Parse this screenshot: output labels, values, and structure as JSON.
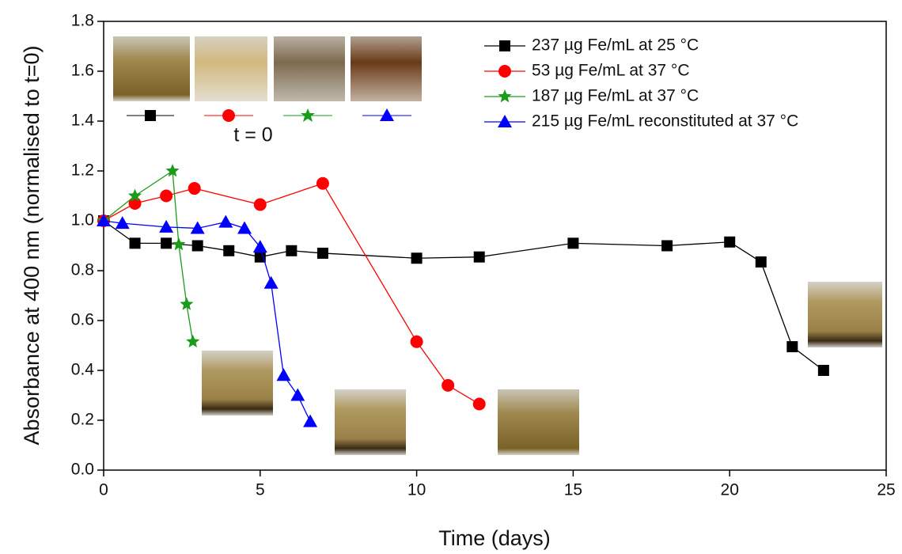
{
  "chart_data": {
    "type": "line",
    "x_label": "Time (days)",
    "y_label": "Absorbance at 400 nm (normalised to t=0)",
    "annotation": "t = 0",
    "xlim": [
      0,
      25
    ],
    "xticks": [
      0,
      5,
      10,
      15,
      20,
      25
    ],
    "ylim": [
      0,
      1.8
    ],
    "yticks": [
      {
        "value": 0,
        "label": "0.0"
      },
      0.2,
      0.4,
      0.6,
      0.8,
      {
        "value": 1,
        "label": "1.0"
      },
      1.2,
      1.4,
      1.6,
      1.8
    ],
    "legend": "upper right",
    "series": [
      {
        "name": "237 µg Fe/mL at 25 °C",
        "color": "#000000",
        "marker": "square",
        "x": [
          0,
          1,
          2,
          3,
          4,
          5,
          6,
          7,
          10,
          12,
          15,
          18,
          20,
          21,
          22,
          23
        ],
        "values": [
          1.0,
          0.91,
          0.91,
          0.9,
          0.88,
          0.855,
          0.88,
          0.87,
          0.85,
          0.855,
          0.91,
          0.9,
          0.915,
          0.835,
          0.495,
          0.4
        ]
      },
      {
        "name": "53 µg Fe/mL at 37 °C",
        "color": "#ff0000",
        "marker": "circle",
        "x": [
          0,
          1,
          2,
          2.9,
          5,
          7,
          10,
          11,
          12
        ],
        "values": [
          1.0,
          1.07,
          1.1,
          1.13,
          1.065,
          1.15,
          0.515,
          0.34,
          0.265
        ]
      },
      {
        "name": "187 µg Fe/mL at 37 °C",
        "color": "#1a9c1a",
        "marker": "star",
        "x": [
          0,
          1,
          2.2,
          2.4,
          2.65,
          2.85
        ],
        "values": [
          1.0,
          1.1,
          1.2,
          0.905,
          0.665,
          0.515
        ]
      },
      {
        "name": "215 µg Fe/mL reconstituted at 37 °C",
        "color": "#0000ff",
        "marker": "triangle",
        "x": [
          0,
          0.6,
          2,
          3,
          3.9,
          4.5,
          5,
          5.35,
          5.75,
          6.2,
          6.6
        ],
        "values": [
          1.0,
          0.99,
          0.975,
          0.97,
          0.995,
          0.97,
          0.895,
          0.75,
          0.38,
          0.3,
          0.195
        ]
      }
    ]
  }
}
